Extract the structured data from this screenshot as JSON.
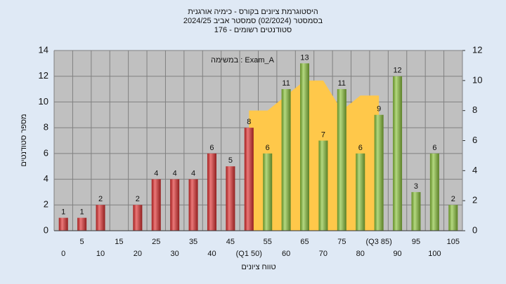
{
  "chart_data": {
    "type": "bar",
    "title": [
      "היסטוגרמת ציונים בקורס - כימיה אורגנית",
      "בסמסטר  (02/2024)  סמסטר אביב 2024/25",
      "סטודנטים רשומים - 176"
    ],
    "annotation": "במשימה : Exam_A",
    "x_label": "טווח ציונים",
    "y_label": "מספר סטודנטים",
    "categories": [
      "0",
      "5",
      "10",
      "15",
      "20",
      "25",
      "30",
      "35",
      "40",
      "45",
      "(Q1 50)",
      "55",
      "60",
      "65",
      "70",
      "75",
      "80",
      "(Q3 85)",
      "90",
      "95",
      "100",
      "105"
    ],
    "values": [
      1,
      1,
      2,
      0,
      2,
      4,
      4,
      4,
      6,
      5,
      8,
      6,
      11,
      13,
      7,
      11,
      6,
      9,
      12,
      3,
      6,
      2
    ],
    "colors": [
      "#e03030",
      "#e03030",
      "#e03030",
      "#e03030",
      "#e03030",
      "#e03030",
      "#e03030",
      "#e03030",
      "#e03030",
      "#e03030",
      "#e03030",
      "#8cc43c",
      "#8cc43c",
      "#8cc43c",
      "#8cc43c",
      "#8cc43c",
      "#8cc43c",
      "#8cc43c",
      "#8cc43c",
      "#8cc43c",
      "#8cc43c",
      "#8cc43c"
    ],
    "area": {
      "axis": "y2",
      "color": "#ffc84a",
      "values": [
        null,
        null,
        null,
        null,
        null,
        null,
        null,
        null,
        null,
        null,
        8,
        8,
        9,
        10,
        10,
        8,
        9,
        9,
        null,
        null,
        null,
        null
      ]
    },
    "ylim": [
      0,
      14
    ],
    "yticks": [
      0,
      2,
      4,
      6,
      8,
      10,
      12,
      14
    ],
    "y2lim": [
      0,
      12
    ],
    "y2ticks": [
      0,
      2,
      4,
      6,
      8,
      10,
      12
    ],
    "grid": true
  }
}
